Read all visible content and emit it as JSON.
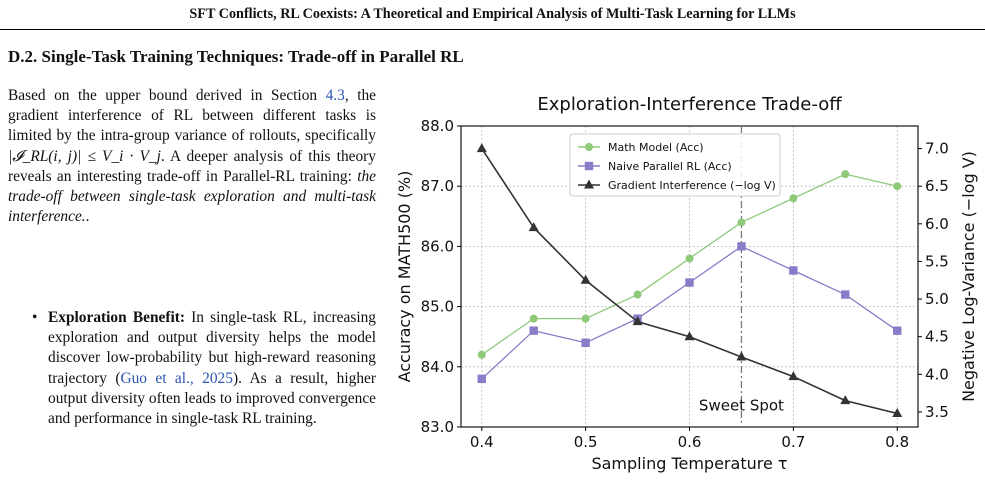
{
  "page": {
    "header": "SFT Conflicts, RL Coexists: A Theoretical and Empirical Analysis of Multi-Task Learning for LLMs",
    "section_title": "D.2. Single-Task Training Techniques: Trade-off in Parallel RL",
    "intro_pre": "Based on the upper bound derived in Section ",
    "intro_ref": "4.3",
    "intro_mid": ", the gradient interference of RL between different tasks is limited by the intra-group variance of rollouts, specifically ",
    "intro_math": "|𝓘_RL(i, j)| ≤ V_i · V_j",
    "intro_post": ". A deeper analysis of this theory reveals an interesting trade-off in Parallel-RL training: ",
    "intro_emph": "the trade-off between single-task exploration and multi-task interference.",
    "intro_end": ".",
    "bullet_label": "Exploration Benefit:",
    "bullet_text_1": " In single-task RL, increasing exploration and output diversity helps the model discover low-probability but high-reward reasoning trajectory (",
    "bullet_ref": "Guo et al., 2025",
    "bullet_text_2": "). As a result, higher output diversity often leads to improved convergence and performance in single-task RL training."
  },
  "chart_data": {
    "type": "line",
    "title": "Exploration-Interference Trade-off",
    "xlabel": "Sampling Temperature τ",
    "ylabel_left": "Accuracy on MATH500 (%)",
    "ylabel_right": "Negative Log-Variance (−log V)",
    "x": [
      0.4,
      0.45,
      0.5,
      0.55,
      0.6,
      0.65,
      0.7,
      0.75,
      0.8
    ],
    "xticks": [
      "0.4",
      "0.5",
      "0.6",
      "0.7",
      "0.8"
    ],
    "xtick_values": [
      0.4,
      0.5,
      0.6,
      0.7,
      0.8
    ],
    "ylim_left": [
      83.0,
      88.0
    ],
    "yticks_left": [
      "83.0",
      "84.0",
      "85.0",
      "86.0",
      "87.0",
      "88.0"
    ],
    "ytick_values_left": [
      83.0,
      84.0,
      85.0,
      86.0,
      87.0,
      88.0
    ],
    "ylim_right": [
      3.3,
      7.3
    ],
    "yticks_right": [
      "3.5",
      "4.0",
      "4.5",
      "5.0",
      "5.5",
      "6.0",
      "6.5",
      "7.0"
    ],
    "ytick_values_right": [
      3.5,
      4.0,
      4.5,
      5.0,
      5.5,
      6.0,
      6.5,
      7.0
    ],
    "grid": true,
    "legend_position": "top-center",
    "series": [
      {
        "name": "Math Model (Acc)",
        "axis": "left",
        "marker": "circle",
        "color": "#8fc97a",
        "values": [
          84.2,
          84.8,
          84.8,
          85.2,
          85.8,
          86.4,
          86.8,
          87.2,
          87.0
        ]
      },
      {
        "name": "Naive Parallel RL (Acc)",
        "axis": "left",
        "marker": "square",
        "color": "#8a7cc9",
        "values": [
          83.8,
          84.6,
          84.4,
          84.8,
          85.4,
          86.0,
          85.6,
          85.2,
          84.6
        ]
      },
      {
        "name": "Gradient Interference (−log V)",
        "axis": "right",
        "marker": "triangle",
        "color": "#333333",
        "values": [
          7.0,
          5.95,
          5.25,
          4.7,
          4.5,
          4.23,
          3.97,
          3.65,
          3.48
        ]
      }
    ],
    "vline": {
      "x": 0.65,
      "label": "Sweet Spot"
    }
  }
}
